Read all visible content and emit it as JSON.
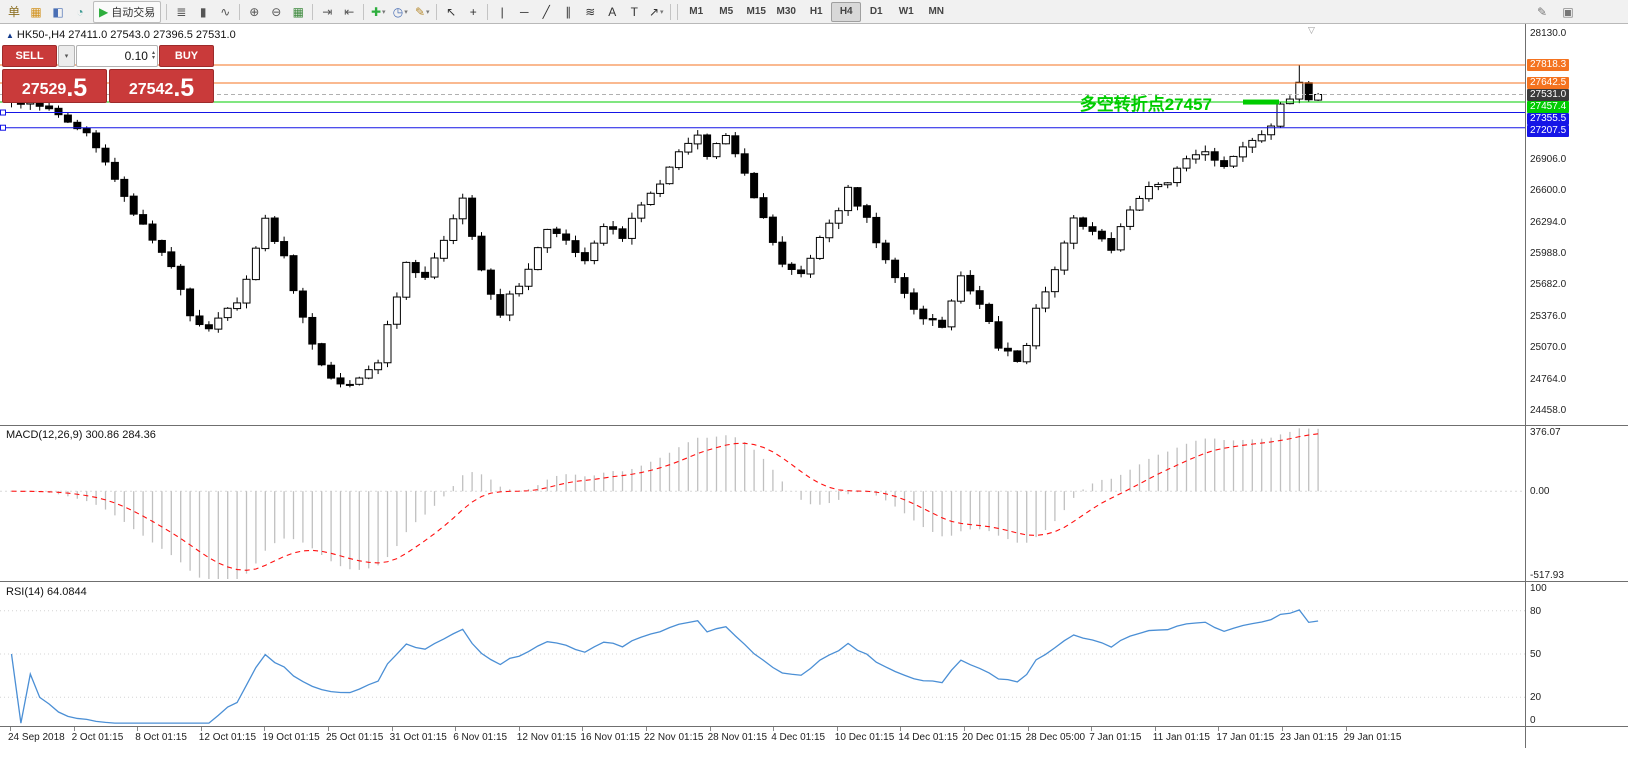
{
  "glyphs": {
    "dropdown": "▾",
    "spinner_up": "▴",
    "spinner_down": "▾",
    "symbol_marker": "▲",
    "shift_marker": "▽",
    "play": "▶"
  },
  "toolbar": {
    "items": [
      {
        "name": "new-order-button",
        "glyph": "单",
        "color": "#8a6d1f"
      },
      {
        "name": "new-chart-button",
        "glyph": "▦",
        "color": "#d2921e"
      },
      {
        "name": "profiles-button",
        "glyph": "◧",
        "color": "#4a6fb5"
      },
      {
        "name": "data-window-button",
        "glyph": "◔",
        "color": "#3f9b94"
      },
      {
        "name": "autotrading-button",
        "glyph": "▶",
        "color": "#2eae3e",
        "label": "自动交易"
      },
      {
        "sep": true
      },
      {
        "name": "bars-mode-button",
        "glyph": "≣",
        "color": "#555555"
      },
      {
        "name": "candlestick-mode-button",
        "glyph": "▮",
        "color": "#555555"
      },
      {
        "name": "line-mode-button",
        "glyph": "∿",
        "color": "#555555"
      },
      {
        "sep": true
      },
      {
        "name": "zoom-in-button",
        "glyph": "⊕",
        "color": "#555555"
      },
      {
        "name": "zoom-out-button",
        "glyph": "⊖",
        "color": "#555555"
      },
      {
        "name": "grid-button",
        "glyph": "▦",
        "color": "#3d8a3d"
      },
      {
        "sep": true
      },
      {
        "name": "auto-scroll-button",
        "glyph": "⇥",
        "color": "#555555"
      },
      {
        "name": "chart-shift-button",
        "glyph": "⇤",
        "color": "#555555"
      },
      {
        "sep": true
      },
      {
        "name": "indicators-button",
        "glyph": "✚",
        "color": "#2eae3e",
        "dropdown": true
      },
      {
        "name": "periods-button",
        "glyph": "◷",
        "color": "#4a6fb5",
        "dropdown": true
      },
      {
        "name": "templates-button",
        "glyph": "✎",
        "color": "#b5892e",
        "dropdown": true
      },
      {
        "sep": true
      },
      {
        "name": "cursor-tool-button",
        "glyph": "↖",
        "color": "#333333"
      },
      {
        "name": "crosshair-tool-button",
        "glyph": "+",
        "color": "#333333"
      },
      {
        "sep": true
      },
      {
        "name": "vertical-line-tool-button",
        "glyph": "|",
        "color": "#333333"
      },
      {
        "name": "horizontal-line-tool-button",
        "glyph": "─",
        "color": "#333333"
      },
      {
        "name": "trendline-tool-button",
        "glyph": "╱",
        "color": "#333333"
      },
      {
        "name": "channel-tool-button",
        "glyph": "∥",
        "color": "#333333"
      },
      {
        "name": "fibonacci-tool-button",
        "glyph": "≋",
        "color": "#333333"
      },
      {
        "name": "text-tool-button",
        "glyph": "A",
        "color": "#333333"
      },
      {
        "name": "label-tool-button",
        "glyph": "T",
        "color": "#333333"
      },
      {
        "name": "arrows-tool-button",
        "glyph": "↗",
        "color": "#333333",
        "dropdown": true
      },
      {
        "sep": true
      }
    ],
    "timeframes": [
      {
        "label": "M1"
      },
      {
        "label": "M5"
      },
      {
        "label": "M15"
      },
      {
        "label": "M30"
      },
      {
        "label": "H1"
      },
      {
        "label": "H4",
        "active": true
      },
      {
        "label": "D1"
      },
      {
        "label": "W1"
      },
      {
        "label": "MN"
      }
    ],
    "right_icons": [
      {
        "name": "edit-panel-icon",
        "glyph": "✎"
      },
      {
        "name": "dock-panel-icon",
        "glyph": "▣"
      }
    ]
  },
  "symbol_info": {
    "symbol": "HK50-,H4",
    "ohlc": "27411.0 27543.0 27396.5 27531.0"
  },
  "trade_panel": {
    "sell_label": "SELL",
    "buy_label": "BUY",
    "lot": "0.10",
    "sell_price_main": "27529",
    "sell_price_frac": ".5",
    "buy_price_main": "27542",
    "buy_price_frac": ".5"
  },
  "annotation": {
    "text": "多空转折点27457",
    "color": "#00cc00"
  },
  "levels": [
    {
      "label": "27818.3",
      "value": 27818.3,
      "color_key": "orange",
      "line": true
    },
    {
      "label": "27642.5",
      "value": 27642.5,
      "color_key": "orange",
      "line": true
    },
    {
      "label": "27531.0",
      "value": 27531.0,
      "color_key": "bid_badge",
      "line": false,
      "dashed_bid": true
    },
    {
      "label": "27457.4",
      "value": 27457.4,
      "color_key": "green",
      "line": true,
      "marker": true
    },
    {
      "label": "27355.5",
      "value": 27355.5,
      "color_key": "blue",
      "line": true,
      "handle": true
    },
    {
      "label": "27207.5",
      "value": 27207.5,
      "color_key": "blue",
      "line": true,
      "handle": true
    }
  ],
  "price_axis": {
    "ticks": [
      {
        "label": "28130.0",
        "value": 28130
      },
      {
        "label": "26906.0",
        "value": 26906
      },
      {
        "label": "26600.0",
        "value": 26600
      },
      {
        "label": "26294.0",
        "value": 26294
      },
      {
        "label": "25988.0",
        "value": 25988
      },
      {
        "label": "25682.0",
        "value": 25682
      },
      {
        "label": "25376.0",
        "value": 25376
      },
      {
        "label": "25070.0",
        "value": 25070
      },
      {
        "label": "24764.0",
        "value": 24764
      },
      {
        "label": "24458.0",
        "value": 24458
      }
    ]
  },
  "macd": {
    "label": "MACD(12,26,9)",
    "value_main": "300.86",
    "value_signal": "284.36",
    "axis": [
      {
        "label": "376.07",
        "value": 376.07
      },
      {
        "label": "0.00",
        "value": 0
      },
      {
        "label": "-517.93",
        "value": -517.93
      }
    ]
  },
  "rsi": {
    "label": "RSI(14)",
    "value": "64.0844",
    "axis": [
      {
        "label": "100",
        "value": 100
      },
      {
        "label": "80",
        "value": 80
      },
      {
        "label": "50",
        "value": 50
      },
      {
        "label": "20",
        "value": 20
      },
      {
        "label": "0",
        "value": 0
      }
    ],
    "levels": [
      80,
      50,
      20
    ]
  },
  "time_axis": {
    "labels": [
      "24 Sep 2018",
      "2 Oct 01:15",
      "8 Oct 01:15",
      "12 Oct 01:15",
      "19 Oct 01:15",
      "25 Oct 01:15",
      "31 Oct 01:15",
      "6 Nov 01:15",
      "12 Nov 01:15",
      "16 Nov 01:15",
      "22 Nov 01:15",
      "28 Nov 01:15",
      "4 Dec 01:15",
      "10 Dec 01:15",
      "14 Dec 01:15",
      "20 Dec 01:15",
      "28 Dec 05:00",
      "7 Jan 01:15",
      "11 Jan 01:15",
      "17 Jan 01:15",
      "23 Jan 01:15",
      "29 Jan 01:15"
    ]
  },
  "chart_data": {
    "type": "candlestick",
    "symbol": "HK50-",
    "period": "H4",
    "count": 140,
    "seed": 12,
    "price_min": 24458,
    "price_max": 28130,
    "last_close": 27531.0,
    "spike": {
      "index": 137,
      "high": 27818.3
    },
    "anchors": [
      [
        0,
        27480
      ],
      [
        3,
        27430
      ],
      [
        5,
        27350
      ],
      [
        8,
        27150
      ],
      [
        10,
        26900
      ],
      [
        13,
        26400
      ],
      [
        15,
        26150
      ],
      [
        17,
        25850
      ],
      [
        19,
        25400
      ],
      [
        21,
        25250
      ],
      [
        24,
        25500
      ],
      [
        27,
        26300
      ],
      [
        29,
        25950
      ],
      [
        31,
        25350
      ],
      [
        33,
        24900
      ],
      [
        35,
        24700
      ],
      [
        37,
        24780
      ],
      [
        39,
        24950
      ],
      [
        42,
        25900
      ],
      [
        44,
        25750
      ],
      [
        47,
        26350
      ],
      [
        48,
        26500
      ],
      [
        50,
        25800
      ],
      [
        52,
        25400
      ],
      [
        55,
        25850
      ],
      [
        57,
        26250
      ],
      [
        59,
        26100
      ],
      [
        61,
        25900
      ],
      [
        63,
        26250
      ],
      [
        65,
        26150
      ],
      [
        67,
        26450
      ],
      [
        69,
        26650
      ],
      [
        71,
        27000
      ],
      [
        73,
        27100
      ],
      [
        74,
        26950
      ],
      [
        76,
        27100
      ],
      [
        78,
        26750
      ],
      [
        80,
        26300
      ],
      [
        82,
        25900
      ],
      [
        84,
        25750
      ],
      [
        86,
        26100
      ],
      [
        89,
        26600
      ],
      [
        91,
        26300
      ],
      [
        93,
        25950
      ],
      [
        95,
        25600
      ],
      [
        97,
        25350
      ],
      [
        99,
        25300
      ],
      [
        101,
        25750
      ],
      [
        103,
        25500
      ],
      [
        105,
        25100
      ],
      [
        107,
        24950
      ],
      [
        108,
        25050
      ],
      [
        109,
        25450
      ],
      [
        111,
        25800
      ],
      [
        113,
        26300
      ],
      [
        115,
        26200
      ],
      [
        117,
        26050
      ],
      [
        119,
        26400
      ],
      [
        121,
        26600
      ],
      [
        123,
        26700
      ],
      [
        125,
        26900
      ],
      [
        127,
        26950
      ],
      [
        129,
        26800
      ],
      [
        131,
        27000
      ],
      [
        133,
        27150
      ],
      [
        134,
        27250
      ],
      [
        135,
        27430
      ],
      [
        136,
        27520
      ],
      [
        137,
        27650
      ],
      [
        138,
        27480
      ],
      [
        139,
        27531
      ]
    ],
    "indicators": [
      {
        "name": "MACD",
        "params": [
          12,
          26,
          9
        ],
        "current": [
          300.86,
          284.36
        ],
        "scale": [
          -517.93,
          376.07
        ]
      },
      {
        "name": "RSI",
        "params": [
          14
        ],
        "current": 64.0844,
        "scale": [
          0,
          100
        ]
      }
    ]
  },
  "colors": {
    "up": "#ffffff",
    "down": "#000000",
    "outline": "#000000",
    "orange": "#f47320",
    "green": "#00cc00",
    "blue": "#1515e6",
    "bid_badge": "#3a3a3a",
    "bid_line": "#b0b0b0",
    "macd_hist": "#c0c0c0",
    "macd_signal": "#ff1010",
    "rsi_line": "#4b8fd5",
    "trade_red": "#c93a3a",
    "trade_red_dark": "#bd3030"
  }
}
